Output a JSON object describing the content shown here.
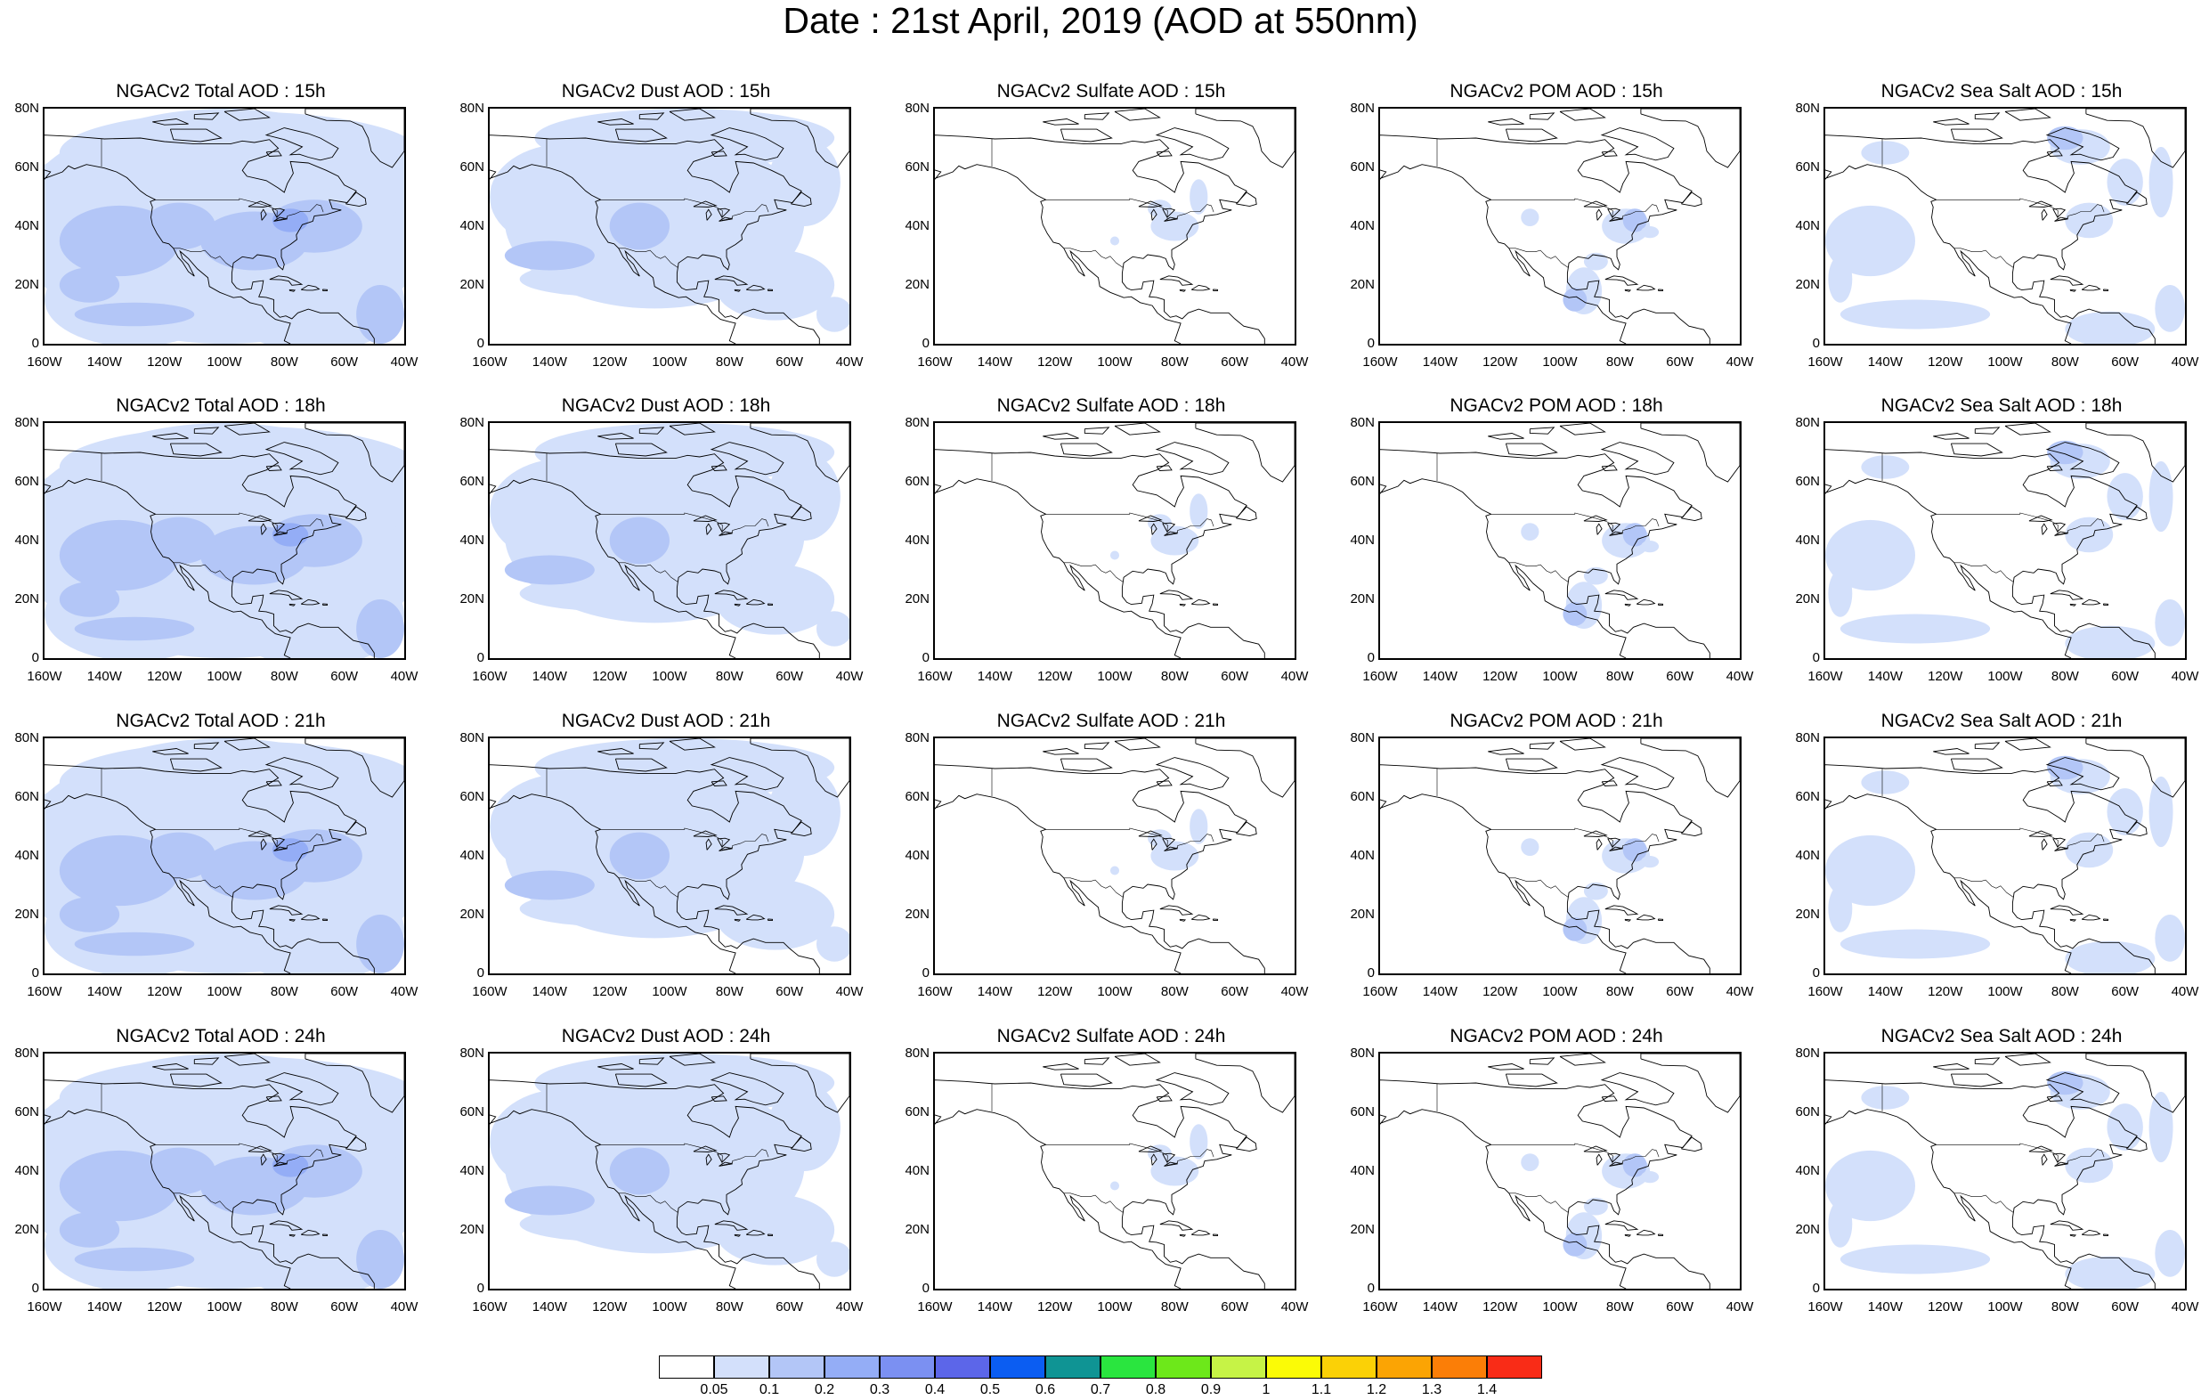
{
  "title": "Date : 21st April, 2019 (AOD at 550nm)",
  "axes": {
    "lat_ticks": [
      "0",
      "20N",
      "40N",
      "60N",
      "80N"
    ],
    "lon_ticks": [
      "160W",
      "140W",
      "120W",
      "100W",
      "80W",
      "60W",
      "40W"
    ]
  },
  "panels": [
    {
      "title": "NGACv2 Total AOD : 15h",
      "variable": "total",
      "hour": "15h",
      "coverage": "high"
    },
    {
      "title": "NGACv2 Dust AOD : 15h",
      "variable": "dust",
      "hour": "15h",
      "coverage": "medium"
    },
    {
      "title": "NGACv2 Sulfate AOD : 15h",
      "variable": "sulfate",
      "hour": "15h",
      "coverage": "low"
    },
    {
      "title": "NGACv2 POM AOD : 15h",
      "variable": "pom",
      "hour": "15h",
      "coverage": "low"
    },
    {
      "title": "NGACv2 Sea Salt AOD : 15h",
      "variable": "seasalt",
      "hour": "15h",
      "coverage": "medium-low"
    },
    {
      "title": "NGACv2 Total AOD : 18h",
      "variable": "total",
      "hour": "18h",
      "coverage": "high"
    },
    {
      "title": "NGACv2 Dust AOD : 18h",
      "variable": "dust",
      "hour": "18h",
      "coverage": "medium"
    },
    {
      "title": "NGACv2 Sulfate AOD : 18h",
      "variable": "sulfate",
      "hour": "18h",
      "coverage": "low"
    },
    {
      "title": "NGACv2 POM AOD : 18h",
      "variable": "pom",
      "hour": "18h",
      "coverage": "low"
    },
    {
      "title": "NGACv2 Sea Salt AOD : 18h",
      "variable": "seasalt",
      "hour": "18h",
      "coverage": "medium-low"
    },
    {
      "title": "NGACv2 Total AOD : 21h",
      "variable": "total",
      "hour": "21h",
      "coverage": "high"
    },
    {
      "title": "NGACv2 Dust AOD : 21h",
      "variable": "dust",
      "hour": "21h",
      "coverage": "medium"
    },
    {
      "title": "NGACv2 Sulfate AOD : 21h",
      "variable": "sulfate",
      "hour": "21h",
      "coverage": "low"
    },
    {
      "title": "NGACv2 POM AOD : 21h",
      "variable": "pom",
      "hour": "21h",
      "coverage": "low"
    },
    {
      "title": "NGACv2 Sea Salt AOD : 21h",
      "variable": "seasalt",
      "hour": "21h",
      "coverage": "medium-low"
    },
    {
      "title": "NGACv2 Total AOD : 24h",
      "variable": "total",
      "hour": "24h",
      "coverage": "high"
    },
    {
      "title": "NGACv2 Dust AOD : 24h",
      "variable": "dust",
      "hour": "24h",
      "coverage": "medium"
    },
    {
      "title": "NGACv2 Sulfate AOD : 24h",
      "variable": "sulfate",
      "hour": "24h",
      "coverage": "low"
    },
    {
      "title": "NGACv2 POM AOD : 24h",
      "variable": "pom",
      "hour": "24h",
      "coverage": "low"
    },
    {
      "title": "NGACv2 Sea Salt  AOD : 24h",
      "variable": "seasalt",
      "hour": "24h",
      "coverage": "medium-low"
    }
  ],
  "colorbar": {
    "colors": [
      "#ffffff",
      "#d3e0fb",
      "#b3c6f7",
      "#94adf6",
      "#7b90f2",
      "#5c66e9",
      "#0b5df2",
      "#0f9494",
      "#2ae53f",
      "#6de81a",
      "#c6f346",
      "#fbfb06",
      "#fbd106",
      "#fba404",
      "#fb7e07",
      "#f92c17"
    ],
    "labels": [
      "0.05",
      "0.1",
      "0.2",
      "0.3",
      "0.4",
      "0.5",
      "0.6",
      "0.7",
      "0.8",
      "0.9",
      "1",
      "1.1",
      "1.2",
      "1.3",
      "1.4"
    ]
  }
}
